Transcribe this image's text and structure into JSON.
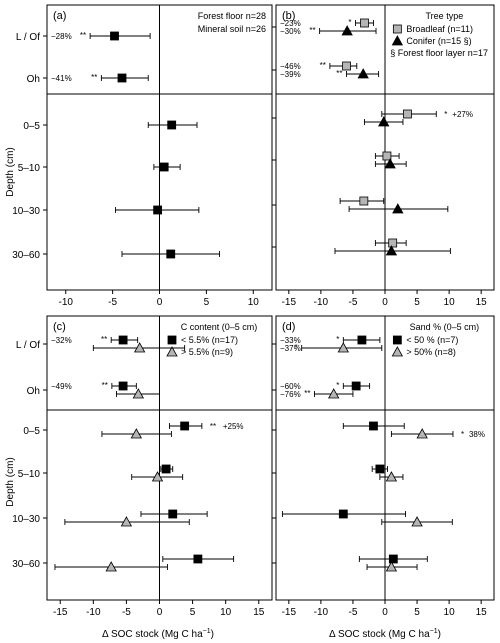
{
  "figure": {
    "ylabel": "Depth (cm)",
    "xlabel": "Δ SOC stock (Mg C ha",
    "xlabel_sup": "−1",
    "xlabel_end": ")"
  },
  "chart_data": [
    {
      "type": "scatter",
      "panel": "(a)",
      "categories": [
        "L / Of",
        "Oh",
        "0–5",
        "5–10",
        "10–30",
        "30–60"
      ],
      "xlim": [
        -12,
        12
      ],
      "xticks": [
        -10,
        -5,
        0,
        5,
        10
      ],
      "ylabel": "Depth (cm)",
      "legend_title": "",
      "legend_lines": [
        "Forest floor n=28",
        "Mineral soil n=26"
      ],
      "series": [
        {
          "name": "",
          "marker": "square",
          "color": "#000000",
          "points": [
            {
              "cat": "L / Of",
              "x": -4.8,
              "lo": -7.4,
              "hi": -1.0,
              "label": "−28%",
              "sig": "**"
            },
            {
              "cat": "Oh",
              "x": -4.0,
              "lo": -6.2,
              "hi": -1.2,
              "label": "−41%",
              "sig": "**"
            },
            {
              "cat": "0–5",
              "x": 1.3,
              "lo": -1.2,
              "hi": 4.0,
              "label": "",
              "sig": ""
            },
            {
              "cat": "5–10",
              "x": 0.5,
              "lo": -0.6,
              "hi": 2.2,
              "label": "",
              "sig": ""
            },
            {
              "cat": "10–30",
              "x": -0.2,
              "lo": -4.7,
              "hi": 4.2,
              "label": "",
              "sig": ""
            },
            {
              "cat": "30–60",
              "x": 1.2,
              "lo": -4.0,
              "hi": 6.4,
              "label": "",
              "sig": ""
            }
          ]
        }
      ]
    },
    {
      "type": "scatter",
      "panel": "(b)",
      "categories": [
        "L / Of",
        "Oh",
        "0–5",
        "5–10",
        "10–30",
        "30–60"
      ],
      "xlim": [
        -17,
        17
      ],
      "xticks": [
        -15,
        -10,
        -5,
        0,
        5,
        10,
        15
      ],
      "ylabel": "",
      "legend_title": "Tree type",
      "legend_lines": [
        "§ Forest floor layer n=17"
      ],
      "series": [
        {
          "name": "Broadleaf (n=11)",
          "marker": "square",
          "color": "#b5b5b5",
          "points": [
            {
              "cat": "L / Of",
              "x": -3.2,
              "lo": -4.6,
              "hi": -1.8,
              "label": "−23%",
              "sig": "*"
            },
            {
              "cat": "Oh",
              "x": -6.0,
              "lo": -8.6,
              "hi": -4.4,
              "label": "−46%",
              "sig": "**"
            },
            {
              "cat": "0–5",
              "x": 3.5,
              "lo": -0.5,
              "hi": 8.0,
              "label": "+27%",
              "sig": "*"
            },
            {
              "cat": "5–10",
              "x": 0.3,
              "lo": -1.5,
              "hi": 2.2,
              "label": "",
              "sig": ""
            },
            {
              "cat": "10–30",
              "x": -3.3,
              "lo": -7.0,
              "hi": -0.2,
              "label": "",
              "sig": ""
            },
            {
              "cat": "30–60",
              "x": 1.2,
              "lo": -1.5,
              "hi": 3.3,
              "label": "",
              "sig": ""
            }
          ]
        },
        {
          "name": "Conifer (n=15 §)",
          "marker": "triangle",
          "color": "#000000",
          "points": [
            {
              "cat": "L / Of",
              "x": -5.9,
              "lo": -10.2,
              "hi": -1.4,
              "label": "−30%",
              "sig": "**"
            },
            {
              "cat": "Oh",
              "x": -3.4,
              "lo": -6.0,
              "hi": -1.0,
              "label": "−39%",
              "sig": "**"
            },
            {
              "cat": "0–5",
              "x": -0.2,
              "lo": -3.2,
              "hi": 2.8,
              "label": "",
              "sig": ""
            },
            {
              "cat": "5–10",
              "x": 0.8,
              "lo": -1.5,
              "hi": 3.3,
              "label": "",
              "sig": ""
            },
            {
              "cat": "10–30",
              "x": 2.0,
              "lo": -5.6,
              "hi": 9.8,
              "label": "",
              "sig": ""
            },
            {
              "cat": "30–60",
              "x": 1.0,
              "lo": -7.8,
              "hi": 10.2,
              "label": "",
              "sig": ""
            }
          ]
        }
      ]
    },
    {
      "type": "scatter",
      "panel": "(c)",
      "categories": [
        "L / Of",
        "Oh",
        "0–5",
        "5–10",
        "10–30",
        "30–60"
      ],
      "xlim": [
        -17,
        17
      ],
      "xticks": [
        -15,
        -10,
        -5,
        0,
        5,
        10,
        15
      ],
      "ylabel": "Depth (cm)",
      "legend_title": "C content (0–5 cm)",
      "legend_lines": [],
      "series": [
        {
          "name": "< 5.5% (n=17)",
          "marker": "square",
          "color": "#000000",
          "points": [
            {
              "cat": "L / Of",
              "x": -5.5,
              "lo": -7.3,
              "hi": -3.3,
              "label": "−32%",
              "sig": "**"
            },
            {
              "cat": "Oh",
              "x": -5.5,
              "lo": -7.2,
              "hi": -3.5,
              "label": "−49%",
              "sig": "**"
            },
            {
              "cat": "0–5",
              "x": 3.8,
              "lo": 1.5,
              "hi": 6.4,
              "label": "+25%",
              "sig": "**"
            },
            {
              "cat": "5–10",
              "x": 1.0,
              "lo": 0.2,
              "hi": 2.0,
              "label": "",
              "sig": ""
            },
            {
              "cat": "10–30",
              "x": 2.0,
              "lo": -2.8,
              "hi": 7.2,
              "label": "",
              "sig": ""
            },
            {
              "cat": "30–60",
              "x": 5.8,
              "lo": 0.5,
              "hi": 11.2,
              "label": "",
              "sig": ""
            }
          ]
        },
        {
          "name": "> 5.5% (n=9)",
          "marker": "triangle",
          "color": "#b5b5b5",
          "points": [
            {
              "cat": "L / Of",
              "x": -3.0,
              "lo": -10.0,
              "hi": 3.8,
              "label": "",
              "sig": ""
            },
            {
              "cat": "Oh",
              "x": -3.2,
              "lo": -6.5,
              "hi": 0.0,
              "label": "",
              "sig": ""
            },
            {
              "cat": "0–5",
              "x": -3.5,
              "lo": -8.7,
              "hi": 1.8,
              "label": "",
              "sig": ""
            },
            {
              "cat": "5–10",
              "x": -0.3,
              "lo": -4.2,
              "hi": 3.5,
              "label": "",
              "sig": ""
            },
            {
              "cat": "10–30",
              "x": -5.0,
              "lo": -14.3,
              "hi": 4.5,
              "label": "",
              "sig": ""
            },
            {
              "cat": "30–60",
              "x": -7.3,
              "lo": -15.8,
              "hi": 1.2,
              "label": "",
              "sig": ""
            }
          ]
        }
      ]
    },
    {
      "type": "scatter",
      "panel": "(d)",
      "categories": [
        "L / Of",
        "Oh",
        "0–5",
        "5–10",
        "10–30",
        "30–60"
      ],
      "xlim": [
        -17,
        17
      ],
      "xticks": [
        -15,
        -10,
        -5,
        0,
        5,
        10,
        15
      ],
      "ylabel": "",
      "legend_title": "Sand % (0–5 cm)",
      "legend_lines": [],
      "series": [
        {
          "name": "< 50 % (n=7)",
          "marker": "square",
          "color": "#000000",
          "points": [
            {
              "cat": "L / Of",
              "x": -3.6,
              "lo": -6.5,
              "hi": -0.8,
              "label": "−33%",
              "sig": "*"
            },
            {
              "cat": "Oh",
              "x": -4.5,
              "lo": -6.5,
              "hi": -2.4,
              "label": "−60%",
              "sig": "*"
            },
            {
              "cat": "0–5",
              "x": -1.8,
              "lo": -6.5,
              "hi": 3.0,
              "label": "",
              "sig": ""
            },
            {
              "cat": "5–10",
              "x": -0.8,
              "lo": -2.0,
              "hi": 0.4,
              "label": "",
              "sig": ""
            },
            {
              "cat": "10–30",
              "x": -6.5,
              "lo": -16.0,
              "hi": 3.2,
              "label": "",
              "sig": ""
            },
            {
              "cat": "30–60",
              "x": 1.3,
              "lo": -4.0,
              "hi": 6.6,
              "label": "",
              "sig": ""
            }
          ]
        },
        {
          "name": "> 50% (n=8)",
          "marker": "triangle",
          "color": "#b5b5b5",
          "points": [
            {
              "cat": "L / Of",
              "x": -6.5,
              "lo": -13.0,
              "hi": -0.5,
              "label": "−37%",
              "sig": "*"
            },
            {
              "cat": "Oh",
              "x": -8.0,
              "lo": -11.0,
              "hi": -5.0,
              "label": "−76%",
              "sig": "**"
            },
            {
              "cat": "0–5",
              "x": 5.8,
              "lo": 1.0,
              "hi": 10.6,
              "label": "38%",
              "sig": "*"
            },
            {
              "cat": "5–10",
              "x": 1.0,
              "lo": -0.8,
              "hi": 2.8,
              "label": "",
              "sig": ""
            },
            {
              "cat": "10–30",
              "x": 5.0,
              "lo": -0.5,
              "hi": 10.5,
              "label": "",
              "sig": ""
            },
            {
              "cat": "30–60",
              "x": 1.0,
              "lo": -2.8,
              "hi": 5.0,
              "label": "",
              "sig": ""
            }
          ]
        }
      ]
    }
  ]
}
